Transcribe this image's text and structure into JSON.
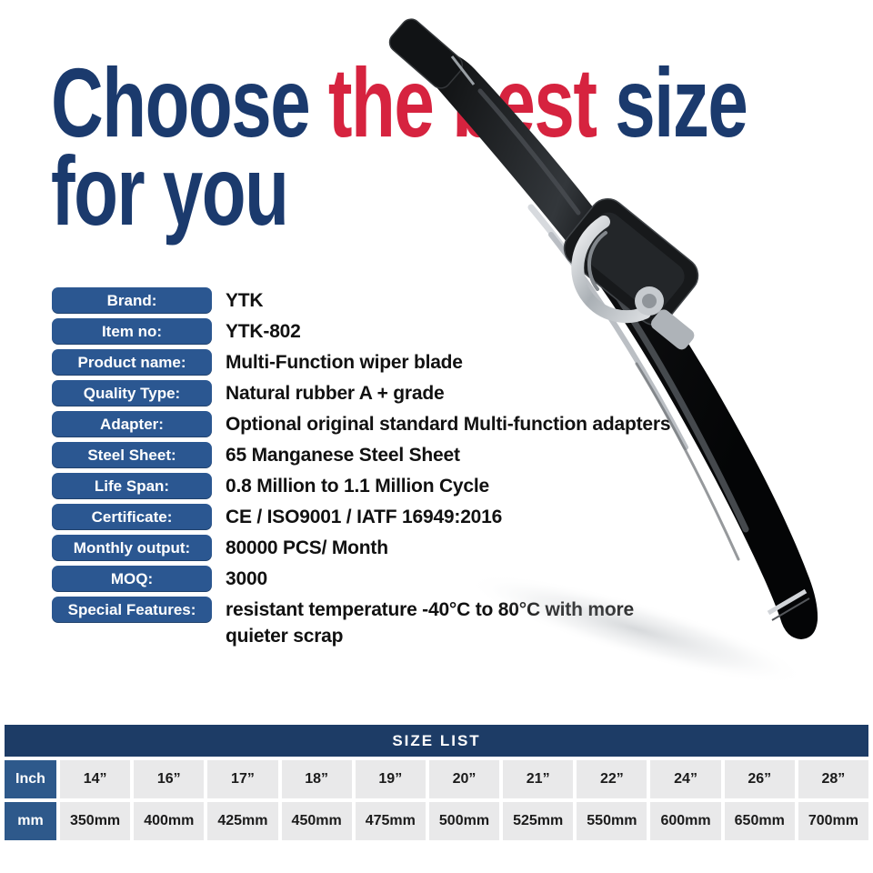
{
  "title": {
    "part1": "Choose ",
    "part2": "the best",
    "part3": " size",
    "line2": "for you"
  },
  "specs": [
    {
      "label": "Brand:",
      "value": "YTK"
    },
    {
      "label": "Item no:",
      "value": "YTK-802"
    },
    {
      "label": "Product name:",
      "value": "Multi-Function wiper blade"
    },
    {
      "label": "Quality Type:",
      "value": "Natural rubber A + grade"
    },
    {
      "label": "Adapter:",
      "value": "Optional original standard Multi-function adapters"
    },
    {
      "label": "Steel Sheet:",
      "value": "65 Manganese Steel Sheet"
    },
    {
      "label": "Life Span:",
      "value": "0.8 Million to 1.1 Million Cycle"
    },
    {
      "label": "Certificate:",
      "value": "CE / ISO9001 / IATF 16949:2016"
    },
    {
      "label": "Monthly output:",
      "value": "80000 PCS/ Month"
    },
    {
      "label": "MOQ:",
      "value": "3000"
    },
    {
      "label": "Special Features:",
      "value": "resistant temperature -40°C to 80°C with more quieter scrap"
    }
  ],
  "size_table": {
    "title": "SIZE LIST",
    "rows": [
      {
        "header": "Inch",
        "cells": [
          "14”",
          "16”",
          "17”",
          "18”",
          "19”",
          "20”",
          "21”",
          "22”",
          "24”",
          "26”",
          "28”"
        ]
      },
      {
        "header": "mm",
        "cells": [
          "350mm",
          "400mm",
          "425mm",
          "450mm",
          "475mm",
          "500mm",
          "525mm",
          "550mm",
          "600mm",
          "650mm",
          "700mm"
        ]
      }
    ]
  },
  "image": {
    "name": "multi-function wiper blade product photo"
  },
  "colors": {
    "headline_navy": "#1b3a6d",
    "headline_red": "#d6233f",
    "label_pill_blue": "#2b5791",
    "table_header_navy": "#1d3c66",
    "table_row_header_blue": "#2e598b",
    "table_cell_gray": "#e9e9ea",
    "value_text": "#111111"
  }
}
